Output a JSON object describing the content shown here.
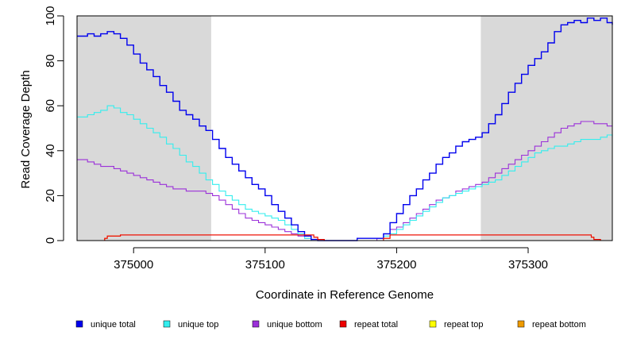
{
  "chart_data": {
    "type": "line",
    "title": "",
    "xlabel": "Coordinate in Reference Genome",
    "ylabel": "Read Coverage Depth",
    "xlim": [
      374957,
      375364
    ],
    "ylim": [
      0,
      100
    ],
    "x_ticks": [
      375000,
      375100,
      375200,
      375300
    ],
    "y_ticks": [
      0,
      20,
      40,
      60,
      80,
      100
    ],
    "shaded_regions": [
      {
        "from": 374957,
        "to": 375059,
        "color": "#d9d9d9"
      },
      {
        "from": 375264,
        "to": 375364,
        "color": "#d9d9d9"
      }
    ],
    "series": [
      {
        "name": "unique total",
        "color": "#0000ee",
        "points": [
          [
            374957,
            91
          ],
          [
            374965,
            92
          ],
          [
            374970,
            91
          ],
          [
            374975,
            92
          ],
          [
            374980,
            93
          ],
          [
            374985,
            92
          ],
          [
            374990,
            90
          ],
          [
            374995,
            87
          ],
          [
            375000,
            83
          ],
          [
            375005,
            79
          ],
          [
            375010,
            76
          ],
          [
            375015,
            73
          ],
          [
            375020,
            69
          ],
          [
            375025,
            66
          ],
          [
            375030,
            62
          ],
          [
            375035,
            58
          ],
          [
            375040,
            56
          ],
          [
            375045,
            54
          ],
          [
            375050,
            51
          ],
          [
            375055,
            49
          ],
          [
            375060,
            45
          ],
          [
            375065,
            41
          ],
          [
            375070,
            37
          ],
          [
            375075,
            34
          ],
          [
            375080,
            31
          ],
          [
            375085,
            28
          ],
          [
            375090,
            25
          ],
          [
            375095,
            23
          ],
          [
            375100,
            20
          ],
          [
            375105,
            16
          ],
          [
            375110,
            13
          ],
          [
            375115,
            10
          ],
          [
            375120,
            7
          ],
          [
            375125,
            4
          ],
          [
            375130,
            2
          ],
          [
            375135,
            0.5
          ],
          [
            375140,
            0
          ],
          [
            375165,
            0
          ],
          [
            375170,
            1
          ],
          [
            375185,
            1
          ],
          [
            375190,
            3
          ],
          [
            375195,
            8
          ],
          [
            375200,
            12
          ],
          [
            375205,
            16
          ],
          [
            375210,
            20
          ],
          [
            375215,
            23
          ],
          [
            375220,
            27
          ],
          [
            375225,
            30
          ],
          [
            375230,
            34
          ],
          [
            375235,
            37
          ],
          [
            375240,
            39
          ],
          [
            375245,
            42
          ],
          [
            375250,
            44
          ],
          [
            375255,
            45
          ],
          [
            375260,
            46
          ],
          [
            375265,
            48
          ],
          [
            375270,
            52
          ],
          [
            375275,
            56
          ],
          [
            375280,
            61
          ],
          [
            375285,
            66
          ],
          [
            375290,
            70
          ],
          [
            375295,
            74
          ],
          [
            375300,
            78
          ],
          [
            375305,
            81
          ],
          [
            375310,
            84
          ],
          [
            375315,
            88
          ],
          [
            375320,
            93
          ],
          [
            375325,
            96
          ],
          [
            375330,
            97
          ],
          [
            375335,
            98
          ],
          [
            375340,
            97
          ],
          [
            375345,
            99
          ],
          [
            375350,
            98
          ],
          [
            375355,
            99
          ],
          [
            375360,
            97
          ],
          [
            375364,
            96
          ]
        ]
      },
      {
        "name": "unique top",
        "color": "#33eeee",
        "points": [
          [
            374957,
            55
          ],
          [
            374965,
            56
          ],
          [
            374970,
            57
          ],
          [
            374975,
            58
          ],
          [
            374980,
            60
          ],
          [
            374985,
            59
          ],
          [
            374990,
            57
          ],
          [
            374995,
            56
          ],
          [
            375000,
            54
          ],
          [
            375005,
            52
          ],
          [
            375010,
            50
          ],
          [
            375015,
            48
          ],
          [
            375020,
            46
          ],
          [
            375025,
            43
          ],
          [
            375030,
            41
          ],
          [
            375035,
            38
          ],
          [
            375040,
            35
          ],
          [
            375045,
            33
          ],
          [
            375050,
            30
          ],
          [
            375055,
            27
          ],
          [
            375060,
            25
          ],
          [
            375065,
            22
          ],
          [
            375070,
            20
          ],
          [
            375075,
            18
          ],
          [
            375080,
            16
          ],
          [
            375085,
            14
          ],
          [
            375090,
            13
          ],
          [
            375095,
            12
          ],
          [
            375100,
            11
          ],
          [
            375105,
            10
          ],
          [
            375110,
            9
          ],
          [
            375115,
            7
          ],
          [
            375120,
            5
          ],
          [
            375125,
            3
          ],
          [
            375130,
            1
          ],
          [
            375135,
            0
          ],
          [
            375140,
            0
          ],
          [
            375185,
            0
          ],
          [
            375190,
            2
          ],
          [
            375195,
            3
          ],
          [
            375200,
            5
          ],
          [
            375205,
            7
          ],
          [
            375210,
            9
          ],
          [
            375215,
            11
          ],
          [
            375220,
            13
          ],
          [
            375225,
            15
          ],
          [
            375230,
            17
          ],
          [
            375235,
            19
          ],
          [
            375240,
            20
          ],
          [
            375245,
            21
          ],
          [
            375250,
            22
          ],
          [
            375255,
            23
          ],
          [
            375260,
            24
          ],
          [
            375265,
            25
          ],
          [
            375270,
            26
          ],
          [
            375275,
            27
          ],
          [
            375280,
            29
          ],
          [
            375285,
            31
          ],
          [
            375290,
            33
          ],
          [
            375295,
            35
          ],
          [
            375300,
            37
          ],
          [
            375305,
            39
          ],
          [
            375310,
            40
          ],
          [
            375315,
            41
          ],
          [
            375320,
            42
          ],
          [
            375325,
            42
          ],
          [
            375330,
            43
          ],
          [
            375335,
            44
          ],
          [
            375340,
            45
          ],
          [
            375345,
            45
          ],
          [
            375350,
            45
          ],
          [
            375355,
            46
          ],
          [
            375360,
            47
          ],
          [
            375364,
            46
          ]
        ]
      },
      {
        "name": "unique bottom",
        "color": "#9b30d9",
        "points": [
          [
            374957,
            36
          ],
          [
            374965,
            35
          ],
          [
            374970,
            34
          ],
          [
            374975,
            33
          ],
          [
            374980,
            33
          ],
          [
            374985,
            32
          ],
          [
            374990,
            31
          ],
          [
            374995,
            30
          ],
          [
            375000,
            29
          ],
          [
            375005,
            28
          ],
          [
            375010,
            27
          ],
          [
            375015,
            26
          ],
          [
            375020,
            25
          ],
          [
            375025,
            24
          ],
          [
            375030,
            23
          ],
          [
            375035,
            23
          ],
          [
            375040,
            22
          ],
          [
            375045,
            22
          ],
          [
            375050,
            22
          ],
          [
            375055,
            21
          ],
          [
            375060,
            20
          ],
          [
            375065,
            18
          ],
          [
            375070,
            16
          ],
          [
            375075,
            14
          ],
          [
            375080,
            12
          ],
          [
            375085,
            10
          ],
          [
            375090,
            9
          ],
          [
            375095,
            8
          ],
          [
            375100,
            7
          ],
          [
            375105,
            6
          ],
          [
            375110,
            5
          ],
          [
            375115,
            4
          ],
          [
            375120,
            3
          ],
          [
            375125,
            2
          ],
          [
            375130,
            1
          ],
          [
            375135,
            0
          ],
          [
            375140,
            0
          ],
          [
            375180,
            0
          ],
          [
            375185,
            1
          ],
          [
            375190,
            3
          ],
          [
            375195,
            5
          ],
          [
            375200,
            6
          ],
          [
            375205,
            8
          ],
          [
            375210,
            10
          ],
          [
            375215,
            12
          ],
          [
            375220,
            14
          ],
          [
            375225,
            16
          ],
          [
            375230,
            18
          ],
          [
            375235,
            19
          ],
          [
            375240,
            20
          ],
          [
            375245,
            22
          ],
          [
            375250,
            23
          ],
          [
            375255,
            24
          ],
          [
            375260,
            25
          ],
          [
            375265,
            26
          ],
          [
            375270,
            28
          ],
          [
            375275,
            30
          ],
          [
            375280,
            32
          ],
          [
            375285,
            34
          ],
          [
            375290,
            36
          ],
          [
            375295,
            38
          ],
          [
            375300,
            40
          ],
          [
            375305,
            42
          ],
          [
            375310,
            44
          ],
          [
            375315,
            46
          ],
          [
            375320,
            48
          ],
          [
            375325,
            50
          ],
          [
            375330,
            51
          ],
          [
            375335,
            52
          ],
          [
            375340,
            53
          ],
          [
            375345,
            53
          ],
          [
            375350,
            52
          ],
          [
            375355,
            52
          ],
          [
            375360,
            51
          ],
          [
            375364,
            51
          ]
        ]
      },
      {
        "name": "repeat total",
        "color": "#ee0000",
        "points": [
          [
            374957,
            0
          ],
          [
            374975,
            0
          ],
          [
            374978,
            1
          ],
          [
            374980,
            2
          ],
          [
            374990,
            2.5
          ],
          [
            375135,
            2.5
          ],
          [
            375137,
            1.5
          ],
          [
            375140,
            0.5
          ],
          [
            375145,
            0
          ],
          [
            375185,
            0
          ],
          [
            375190,
            1
          ],
          [
            375195,
            2.5
          ],
          [
            375345,
            2.5
          ],
          [
            375348,
            1.5
          ],
          [
            375350,
            0.5
          ],
          [
            375355,
            0
          ],
          [
            375364,
            0
          ]
        ]
      },
      {
        "name": "repeat top",
        "color": "#ffff00",
        "points": [
          [
            374957,
            0
          ],
          [
            375364,
            0
          ]
        ]
      },
      {
        "name": "repeat bottom",
        "color": "#ee9a00",
        "points": [
          [
            374957,
            0
          ],
          [
            374975,
            0
          ],
          [
            374978,
            1
          ],
          [
            374980,
            2
          ],
          [
            374990,
            2.5
          ],
          [
            375135,
            2.5
          ],
          [
            375137,
            1.5
          ],
          [
            375140,
            0.5
          ],
          [
            375145,
            0
          ],
          [
            375185,
            0
          ],
          [
            375190,
            1
          ],
          [
            375195,
            2.5
          ],
          [
            375345,
            2.5
          ],
          [
            375348,
            1.5
          ],
          [
            375350,
            0.5
          ],
          [
            375355,
            0
          ],
          [
            375364,
            0
          ]
        ]
      }
    ],
    "legend": [
      {
        "label": "unique total",
        "color": "#0000ee"
      },
      {
        "label": "unique top",
        "color": "#33eeee"
      },
      {
        "label": "unique bottom",
        "color": "#9b30d9"
      },
      {
        "label": "repeat total",
        "color": "#ee0000"
      },
      {
        "label": "repeat top",
        "color": "#ffff00"
      },
      {
        "label": "repeat bottom",
        "color": "#ee9a00"
      }
    ]
  }
}
